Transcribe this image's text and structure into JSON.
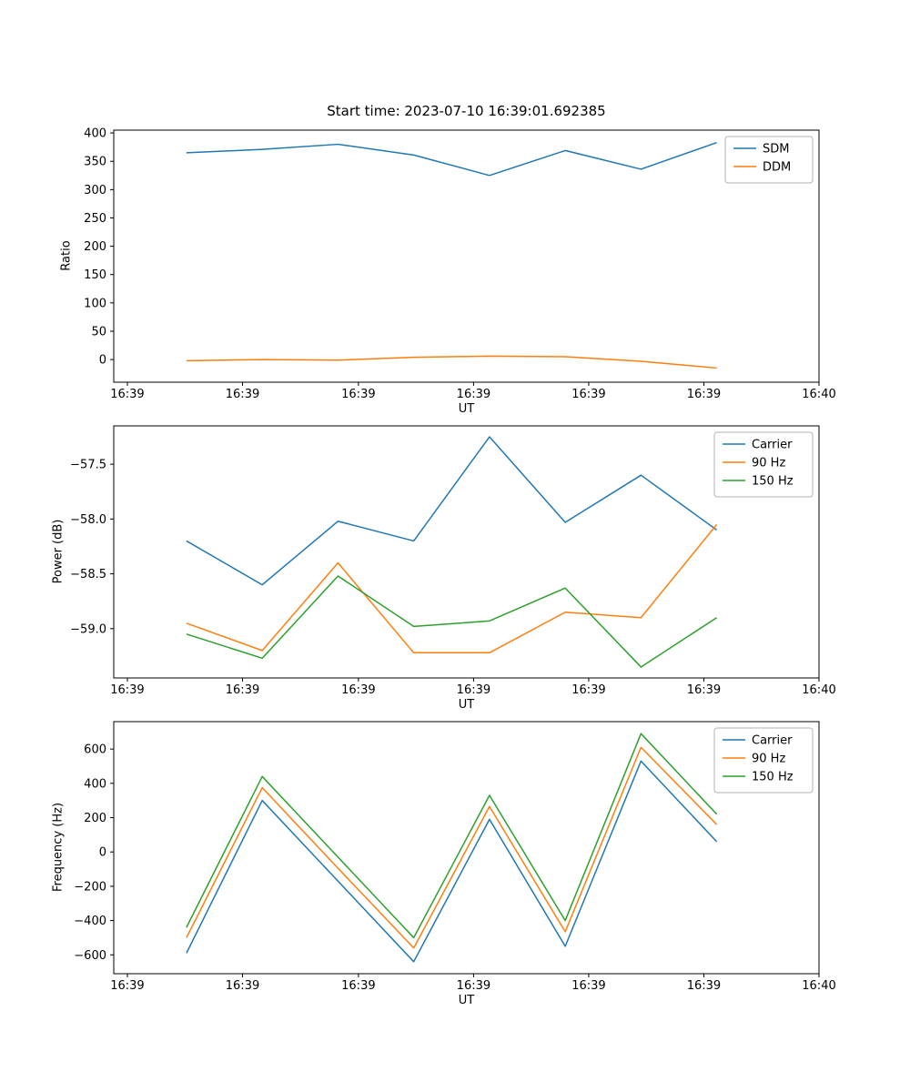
{
  "figure": {
    "background": "#ffffff"
  },
  "chart_data": [
    {
      "type": "line",
      "title": "Start time: 2023-07-10 16:39:01.692385",
      "xlabel": "UT",
      "ylabel": "Ratio",
      "legend_loc": "upper right",
      "grid": false,
      "x": [
        1,
        2,
        3,
        4,
        5,
        6,
        7,
        8
      ],
      "xlim": [
        0.04,
        9.35
      ],
      "xtick_positions": [
        0.22,
        1.74,
        3.27,
        4.79,
        6.31,
        7.83,
        9.35
      ],
      "xtick_labels": [
        "16:39",
        "16:39",
        "16:39",
        "16:39",
        "16:39",
        "16:39",
        "16:40"
      ],
      "ylim": [
        -40,
        405
      ],
      "ytick_values": [
        0,
        50,
        100,
        150,
        200,
        250,
        300,
        350,
        400
      ],
      "ytick_labels": [
        "0",
        "50",
        "100",
        "150",
        "200",
        "250",
        "300",
        "350",
        "400"
      ],
      "series": [
        {
          "name": "SDM",
          "color": "#1f77b4",
          "values": [
            365,
            371,
            380,
            361,
            325,
            369,
            336,
            383
          ]
        },
        {
          "name": "DDM",
          "color": "#ff7f0e",
          "values": [
            -2,
            0,
            -1,
            4,
            6,
            5,
            -3,
            -15
          ]
        }
      ]
    },
    {
      "type": "line",
      "title": "",
      "xlabel": "UT",
      "ylabel": "Power (dB)",
      "legend_loc": "upper right",
      "grid": false,
      "x": [
        1,
        2,
        3,
        4,
        5,
        6,
        7,
        8
      ],
      "xlim": [
        0.04,
        9.35
      ],
      "xtick_positions": [
        0.22,
        1.74,
        3.27,
        4.79,
        6.31,
        7.83,
        9.35
      ],
      "xtick_labels": [
        "16:39",
        "16:39",
        "16:39",
        "16:39",
        "16:39",
        "16:39",
        "16:40"
      ],
      "ylim": [
        -59.45,
        -57.15
      ],
      "ytick_values": [
        -59.0,
        -58.5,
        -58.0,
        -57.5
      ],
      "ytick_labels": [
        "−59.0",
        "−58.5",
        "−58.0",
        "−57.5"
      ],
      "series": [
        {
          "name": "Carrier",
          "color": "#1f77b4",
          "values": [
            -58.2,
            -58.6,
            -58.02,
            -58.2,
            -57.25,
            -58.03,
            -57.6,
            -58.1
          ]
        },
        {
          "name": "90 Hz",
          "color": "#ff7f0e",
          "values": [
            -58.95,
            -59.2,
            -58.4,
            -59.22,
            -59.22,
            -58.85,
            -58.9,
            -58.05
          ]
        },
        {
          "name": "150 Hz",
          "color": "#2ca02c",
          "values": [
            -59.05,
            -59.27,
            -58.52,
            -58.98,
            -58.93,
            -58.63,
            -59.35,
            -58.9
          ]
        }
      ]
    },
    {
      "type": "line",
      "title": "",
      "xlabel": "UT",
      "ylabel": "Frequency (Hz)",
      "legend_loc": "upper right",
      "grid": false,
      "x": [
        1,
        2,
        3,
        4,
        5,
        6,
        7,
        8
      ],
      "xlim": [
        0.04,
        9.35
      ],
      "xtick_positions": [
        0.22,
        1.74,
        3.27,
        4.79,
        6.31,
        7.83,
        9.35
      ],
      "xtick_labels": [
        "16:39",
        "16:39",
        "16:39",
        "16:39",
        "16:39",
        "16:39",
        "16:40"
      ],
      "ylim": [
        -710,
        760
      ],
      "ytick_values": [
        -600,
        -400,
        -200,
        0,
        200,
        400,
        600
      ],
      "ytick_labels": [
        "−600",
        "−400",
        "−200",
        "0",
        "200",
        "400",
        "600"
      ],
      "series": [
        {
          "name": "Carrier",
          "color": "#1f77b4",
          "values": [
            -590,
            300,
            -170,
            -640,
            190,
            -550,
            530,
            60
          ]
        },
        {
          "name": "90 Hz",
          "color": "#ff7f0e",
          "values": [
            -500,
            375,
            -95,
            -560,
            265,
            -465,
            610,
            160
          ]
        },
        {
          "name": "150 Hz",
          "color": "#2ca02c",
          "values": [
            -440,
            440,
            -30,
            -500,
            330,
            -400,
            690,
            220
          ]
        }
      ]
    }
  ]
}
